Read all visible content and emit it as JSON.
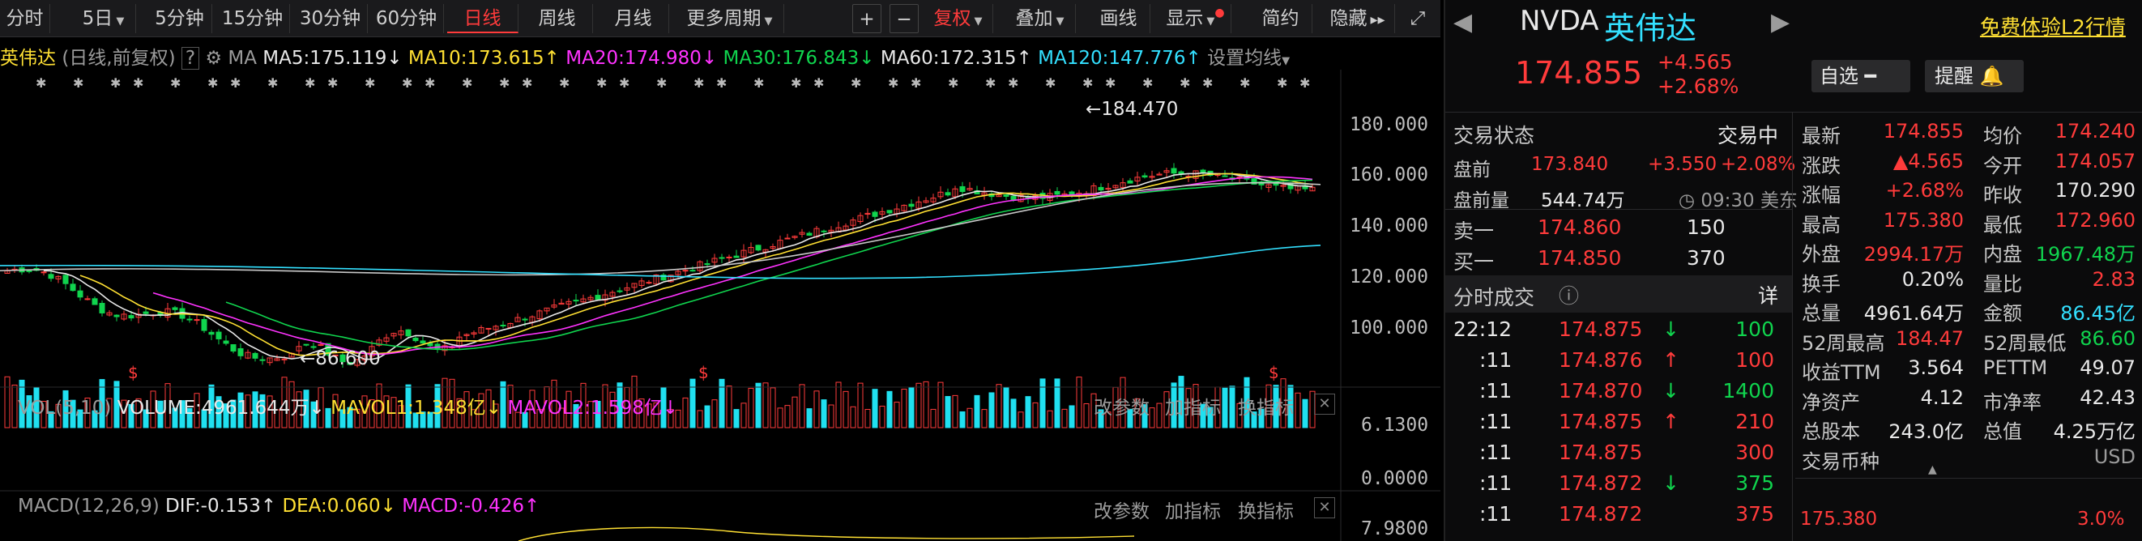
{
  "toolbar": {
    "periods": [
      "分时",
      "5日",
      "5分钟",
      "15分钟",
      "30分钟",
      "60分钟",
      "日线",
      "周线",
      "月线",
      "更多周期"
    ],
    "tools": [
      "+",
      "−",
      "复权",
      "叠加",
      "画线",
      "显示",
      "简约",
      "隐藏"
    ]
  },
  "legend": {
    "name": "英伟达",
    "mode": "(日线,前复权)",
    "help": "?",
    "ma_label": "MA",
    "ma5": "MA5:175.119",
    "ma10": "MA10:173.615",
    "ma20": "MA20:174.980",
    "ma30": "MA30:176.843",
    "ma60": "MA60:172.315",
    "ma120": "MA120:147.776",
    "settings": "设置均线"
  },
  "price_axis": [
    "180.000",
    "160.000",
    "140.000",
    "120.000",
    "100.000"
  ],
  "annotations": {
    "high": "184.470",
    "low": "86.600",
    "dividend": "$"
  },
  "volume": {
    "title": "VOL(5,10)",
    "volume": "VOLUME:4961.644万",
    "mavol1": "MAVOL1:1.348亿",
    "mavol2": "MAVOL2:1.598亿",
    "axis": [
      "6.1300",
      "0.0000"
    ],
    "tools": [
      "改参数",
      "加指标",
      "换指标"
    ]
  },
  "macd": {
    "title": "MACD(12,26,9)",
    "dif": "DIF:-0.153",
    "dea": "DEA:0.060",
    "macd": "MACD:-0.426",
    "axis": [
      "7.9800"
    ],
    "tools": [
      "改参数",
      "加指标",
      "换指标"
    ]
  },
  "stock": {
    "ticker": "NVDA",
    "name": "英伟达",
    "l2": "免费体验L2行情",
    "price": "174.855",
    "change": "+4.565",
    "change_pct": "+2.68%",
    "watch_btn": "自选",
    "alert_btn": "提醒"
  },
  "trading": {
    "status_label": "交易状态",
    "status": "交易中",
    "pre_label": "盘前",
    "pre_price": "173.840",
    "pre_change": "+3.550",
    "pre_pct": "+2.08%",
    "pre_vol_label": "盘前量",
    "pre_vol": "544.74万",
    "pre_time": "09:30 美东",
    "sell1_label": "卖一",
    "sell1_price": "174.860",
    "sell1_vol": "150",
    "buy1_label": "买一",
    "buy1_price": "174.850",
    "buy1_vol": "370"
  },
  "ticks": {
    "title": "分时成交",
    "detail": "详",
    "rows": [
      {
        "time": "22:12",
        "price": "174.875",
        "dir": "down",
        "vol": "100"
      },
      {
        "time": ":11",
        "price": "174.876",
        "dir": "up",
        "vol": "100"
      },
      {
        "time": ":11",
        "price": "174.870",
        "dir": "down",
        "vol": "1400"
      },
      {
        "time": ":11",
        "price": "174.875",
        "dir": "up",
        "vol": "210"
      },
      {
        "time": ":11",
        "price": "174.875",
        "dir": "",
        "vol": "300"
      },
      {
        "time": ":11",
        "price": "174.872",
        "dir": "down",
        "vol": "375"
      },
      {
        "time": ":11",
        "price": "174.872",
        "dir": "",
        "vol": "375"
      }
    ]
  },
  "stats": [
    {
      "l1": "最新",
      "v1": "174.855",
      "c1": "red",
      "l2": "均价",
      "v2": "174.240",
      "c2": "red"
    },
    {
      "l1": "涨跌",
      "v1": "▲4.565",
      "c1": "red",
      "l2": "今开",
      "v2": "174.057",
      "c2": "red"
    },
    {
      "l1": "涨幅",
      "v1": "+2.68%",
      "c1": "red",
      "l2": "昨收",
      "v2": "170.290",
      "c2": "white"
    },
    {
      "l1": "最高",
      "v1": "175.380",
      "c1": "red",
      "l2": "最低",
      "v2": "172.960",
      "c2": "red"
    },
    {
      "l1": "外盘",
      "v1": "2994.17万",
      "c1": "red",
      "l2": "内盘",
      "v2": "1967.48万",
      "c2": "green"
    },
    {
      "l1": "换手",
      "v1": "0.20%",
      "c1": "white",
      "l2": "量比",
      "v2": "2.83",
      "c2": "red"
    },
    {
      "l1": "总量",
      "v1": "4961.64万",
      "c1": "white",
      "l2": "金额",
      "v2": "86.45亿",
      "c2": "cyan"
    },
    {
      "l1": "52周最高",
      "v1": "184.47",
      "c1": "red",
      "l2": "52周最低",
      "v2": "86.60",
      "c2": "green"
    },
    {
      "l1": "收益TTM",
      "v1": "3.564",
      "c1": "white",
      "l2": "PETTM",
      "v2": "49.07",
      "c2": "white"
    },
    {
      "l1": "净资产",
      "v1": "4.12",
      "c1": "white",
      "l2": "市净率",
      "v2": "42.43",
      "c2": "white"
    },
    {
      "l1": "总股本",
      "v1": "243.0亿",
      "c1": "white",
      "l2": "总值",
      "v2": "4.25万亿",
      "c2": "white"
    },
    {
      "l1": "交易币种",
      "v1": "",
      "c1": "white",
      "l2": "",
      "v2": "USD",
      "c2": "grey"
    }
  ],
  "mini": {
    "price": "175.380",
    "pct": "3.0%"
  },
  "colors": {
    "up": "#ff3b3b",
    "down": "#10d44e",
    "ma5": "#e8e8e8",
    "ma10": "#ffe033",
    "ma20": "#ff33ff",
    "ma30": "#10d44e",
    "ma60": "#c8c8c8",
    "ma120": "#33e0ff"
  }
}
